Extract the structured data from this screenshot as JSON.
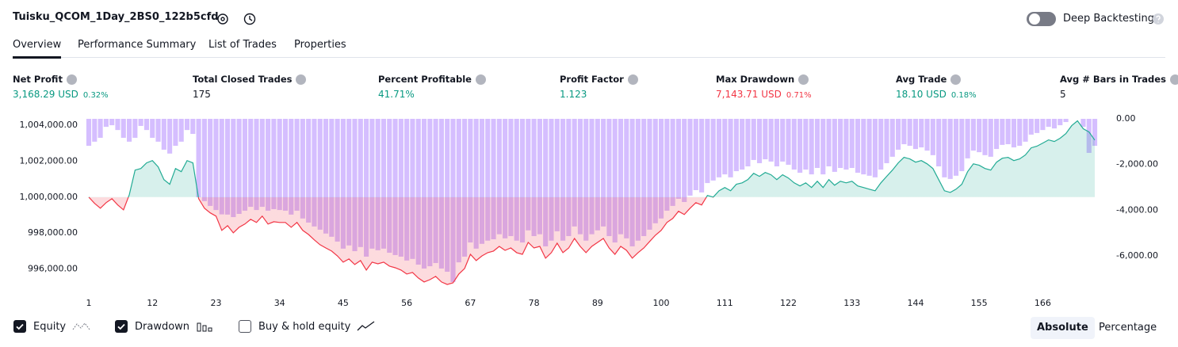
{
  "header": {
    "title": "Tuisku_QCOM_1Day_2BS0_122b5cfd",
    "deep_backtesting": "Deep Backtesting"
  },
  "tabs": [
    {
      "label": "Overview",
      "active": true
    },
    {
      "label": "Performance Summary",
      "active": false
    },
    {
      "label": "List of Trades",
      "active": false
    },
    {
      "label": "Properties",
      "active": false
    }
  ],
  "metrics": [
    {
      "label": "Net Profit",
      "value": "3,168.29 USD",
      "percent": "0.32%",
      "color": "#089981"
    },
    {
      "label": "Total Closed Trades",
      "value": "175",
      "color": "#131722"
    },
    {
      "label": "Percent Profitable",
      "value": "41.71%",
      "color": "#089981"
    },
    {
      "label": "Profit Factor",
      "value": "1.123",
      "color": "#089981"
    },
    {
      "label": "Max Drawdown",
      "value": "7,143.71 USD",
      "percent": "0.71%",
      "color": "#f23645"
    },
    {
      "label": "Avg Trade",
      "value": "18.10 USD",
      "percent": "0.18%",
      "color": "#089981"
    },
    {
      "label": "Avg # Bars in Trades",
      "value": "5",
      "color": "#131722"
    }
  ],
  "chart_data": {
    "type": "line",
    "x": [
      1,
      2,
      3,
      4,
      5,
      6,
      7,
      8,
      9,
      10,
      11,
      12,
      13,
      14,
      15,
      16,
      17,
      18,
      19,
      20,
      21,
      22,
      23,
      24,
      25,
      26,
      27,
      28,
      29,
      30,
      31,
      32,
      33,
      34,
      35,
      36,
      37,
      38,
      39,
      40,
      41,
      42,
      43,
      44,
      45,
      46,
      47,
      48,
      49,
      50,
      51,
      52,
      53,
      54,
      55,
      56,
      57,
      58,
      59,
      60,
      61,
      62,
      63,
      64,
      65,
      66,
      67,
      68,
      69,
      70,
      71,
      72,
      73,
      74,
      75,
      76,
      77,
      78,
      79,
      80,
      81,
      82,
      83,
      84,
      85,
      86,
      87,
      88,
      89,
      90,
      91,
      92,
      93,
      94,
      95,
      96,
      97,
      98,
      99,
      100,
      101,
      102,
      103,
      104,
      105,
      106,
      107,
      108,
      109,
      110,
      111,
      112,
      113,
      114,
      115,
      116,
      117,
      118,
      119,
      120,
      121,
      122,
      123,
      124,
      125,
      126,
      127,
      128,
      129,
      130,
      131,
      132,
      133,
      134,
      135,
      136,
      137,
      138,
      139,
      140,
      141,
      142,
      143,
      144,
      145,
      146,
      147,
      148,
      149,
      150,
      151,
      152,
      153,
      154,
      155,
      156,
      157,
      158,
      159,
      160,
      161,
      162,
      163,
      164,
      165,
      166,
      167,
      168,
      169,
      170,
      171,
      172,
      173,
      174,
      175
    ],
    "series": [
      {
        "name": "Equity",
        "color": "#22ab94",
        "negative_color": "#f23645",
        "checked": true,
        "values": [
          1000000,
          999650,
          999380,
          999690,
          999910,
          999560,
          999290,
          1000130,
          1001500,
          1001590,
          1001900,
          1002030,
          1001680,
          1000970,
          1000710,
          1001590,
          1001410,
          1002030,
          1001900,
          999910,
          999380,
          999120,
          998940,
          998150,
          998410,
          998010,
          998320,
          998500,
          998760,
          998590,
          998940,
          998500,
          998630,
          998590,
          998590,
          998320,
          998590,
          998150,
          997920,
          997620,
          997350,
          997170,
          997000,
          996730,
          996380,
          996560,
          996250,
          996470,
          995940,
          996380,
          996290,
          996380,
          996160,
          996070,
          995940,
          995720,
          995810,
          995500,
          995280,
          995410,
          995590,
          995280,
          995140,
          995230,
          995720,
          996030,
          996820,
          996470,
          996730,
          996910,
          997000,
          997260,
          997040,
          997170,
          996910,
          996820,
          997480,
          997170,
          997260,
          996600,
          996910,
          997440,
          996910,
          997170,
          997700,
          997260,
          996910,
          997260,
          997480,
          997700,
          997170,
          996820,
          997260,
          997040,
          996600,
          996910,
          997170,
          997530,
          997880,
          998150,
          998590,
          998810,
          999210,
          999030,
          999380,
          999690,
          999560,
          1000090,
          1000000,
          1000350,
          1000530,
          1000350,
          1000710,
          1000790,
          1000970,
          1001320,
          1001150,
          1001370,
          1001240,
          1000970,
          1001240,
          1001060,
          1000790,
          1000620,
          1000790,
          1000530,
          1000880,
          1000530,
          1000970,
          1000660,
          1000880,
          1000790,
          1000880,
          1000620,
          1000530,
          1000440,
          1000350,
          1000790,
          1001150,
          1001500,
          1001900,
          1002210,
          1002120,
          1001940,
          1002030,
          1001850,
          1001590,
          1000970,
          1000350,
          1000260,
          1000440,
          1000710,
          1001410,
          1001850,
          1001770,
          1001590,
          1001500,
          1001940,
          1002160,
          1002210,
          1002030,
          1002120,
          1002340,
          1002740,
          1002830,
          1003000,
          1003180,
          1003090,
          1003270,
          1003530,
          1003970,
          1004240,
          1003800,
          1003620,
          1003170
        ]
      },
      {
        "name": "Drawdown",
        "type": "bar",
        "axis": "y2",
        "color": "#b388ff",
        "checked": true,
        "values": [
          -1180,
          -1000,
          -830,
          -350,
          -280,
          -490,
          -830,
          -1000,
          -830,
          -310,
          -490,
          -830,
          -1000,
          -1350,
          -1520,
          -1180,
          -1000,
          -490,
          -660,
          -3430,
          -3600,
          -3810,
          -3990,
          -4180,
          -4190,
          -4300,
          -4160,
          -4020,
          -3850,
          -3990,
          -3850,
          -4020,
          -3950,
          -3990,
          -4020,
          -4190,
          -4020,
          -4360,
          -4540,
          -4710,
          -4850,
          -5020,
          -5160,
          -5370,
          -5680,
          -5540,
          -5790,
          -5610,
          -6030,
          -5680,
          -5750,
          -5680,
          -5860,
          -5960,
          -6030,
          -6200,
          -6130,
          -6380,
          -6550,
          -6450,
          -6310,
          -6550,
          -6690,
          -7140,
          -6280,
          -6030,
          -5410,
          -5680,
          -5470,
          -5330,
          -5270,
          -5050,
          -5230,
          -5130,
          -5330,
          -5410,
          -4880,
          -5130,
          -5050,
          -5580,
          -5330,
          -4920,
          -5330,
          -5130,
          -4710,
          -5050,
          -5330,
          -5050,
          -4880,
          -4710,
          -5130,
          -5410,
          -5050,
          -5230,
          -5580,
          -5330,
          -5130,
          -4850,
          -4570,
          -4360,
          -4020,
          -3810,
          -3500,
          -3640,
          -3360,
          -3120,
          -3220,
          -2810,
          -2700,
          -2560,
          -2430,
          -2560,
          -2290,
          -2220,
          -2080,
          -1800,
          -1940,
          -1770,
          -1870,
          -2080,
          -1870,
          -2010,
          -2220,
          -2360,
          -2220,
          -2430,
          -2150,
          -2430,
          -2080,
          -2320,
          -2150,
          -2220,
          -2150,
          -2360,
          -2430,
          -2490,
          -2560,
          -2220,
          -1940,
          -1660,
          -1350,
          -1110,
          -1180,
          -1320,
          -1250,
          -1390,
          -1590,
          -2080,
          -2560,
          -2630,
          -2490,
          -2290,
          -1730,
          -1390,
          -1460,
          -1590,
          -1660,
          -1320,
          -1140,
          -1110,
          -1250,
          -1180,
          -1000,
          -690,
          -620,
          -490,
          -350,
          -420,
          -280,
          -140,
          0,
          0,
          -350,
          -1490,
          -1180
        ]
      }
    ],
    "buy_hold": {
      "name": "Buy & hold equity",
      "checked": false
    },
    "xlim": [
      0.45,
      177.05
    ],
    "xticks": [
      1,
      12,
      23,
      34,
      45,
      56,
      67,
      78,
      89,
      100,
      111,
      122,
      133,
      144,
      155,
      166
    ],
    "ylim": [
      995100,
      1004350
    ],
    "yticks": [
      {
        "value": 996000,
        "label": "996,000.00"
      },
      {
        "value": 998000,
        "label": "998,000.00"
      },
      {
        "value": 1000000,
        "label": "1,000,000.00"
      },
      {
        "value": 1002000,
        "label": "1,002,000.00"
      },
      {
        "value": 1004000,
        "label": "1,004,000.00"
      }
    ],
    "y2lim": [
      -7280,
      0
    ],
    "y2ticks": [
      {
        "value": 0,
        "label": "0.00"
      },
      {
        "value": -2000,
        "label": "-2,000.00"
      },
      {
        "value": -4000,
        "label": "-4,000.00"
      },
      {
        "value": -6000,
        "label": "-6,000.00"
      }
    ]
  },
  "view_modes": [
    {
      "label": "Absolute",
      "active": true
    },
    {
      "label": "Percentage",
      "active": false
    }
  ]
}
